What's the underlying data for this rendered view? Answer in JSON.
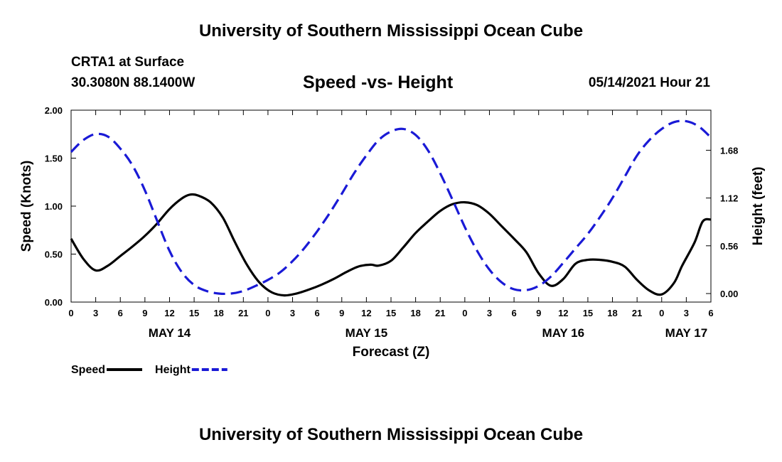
{
  "header": {
    "title": "University of Southern Mississippi Ocean Cube",
    "station": "CRTA1 at Surface",
    "coords": "30.3080N  88.1400W",
    "datetime": "05/14/2021 Hour 21"
  },
  "footer": {
    "title": "University of Southern Mississippi Ocean Cube"
  },
  "chart_data": {
    "type": "line",
    "title": "Speed -vs- Height",
    "xlabel": "Forecast (Z)",
    "ylabel_left": "Speed (Knots)",
    "ylabel_right": "Height (feet)",
    "xlim": [
      0,
      78
    ],
    "x_ticks": [
      0,
      3,
      6,
      9,
      12,
      15,
      18,
      21,
      24,
      27,
      30,
      33,
      36,
      39,
      42,
      45,
      48,
      51,
      54,
      57,
      60,
      63,
      66,
      69,
      72,
      75,
      78
    ],
    "x_tick_labels": [
      "0",
      "3",
      "6",
      "9",
      "12",
      "15",
      "18",
      "21",
      "0",
      "3",
      "6",
      "9",
      "12",
      "15",
      "18",
      "21",
      "0",
      "3",
      "6",
      "9",
      "12",
      "15",
      "18",
      "21",
      "0",
      "3",
      "6"
    ],
    "date_labels": [
      {
        "x": 12,
        "label": "MAY 14"
      },
      {
        "x": 36,
        "label": "MAY 15"
      },
      {
        "x": 60,
        "label": "MAY 16"
      },
      {
        "x": 75,
        "label": "MAY 17"
      }
    ],
    "left_axis": {
      "ylim": [
        0,
        2.0
      ],
      "ticks": [
        0,
        0.5,
        1.0,
        1.5,
        2.0
      ],
      "tick_labels": [
        "0.00",
        "0.50",
        "1.00",
        "1.50",
        "2.00"
      ]
    },
    "right_axis": {
      "ylim": [
        -0.1,
        2.15
      ],
      "ticks": [
        0.0,
        0.56,
        1.12,
        1.68
      ],
      "tick_labels": [
        "0.00",
        "0.56",
        "1.12",
        "1.68"
      ]
    },
    "series": [
      {
        "name": "Speed",
        "axis": "left",
        "color": "#000000",
        "style": "solid",
        "x": [
          0,
          1.5,
          3,
          4.5,
          6,
          7.5,
          9,
          10.5,
          12,
          13.5,
          14.5,
          15.5,
          17,
          18.5,
          20,
          21.5,
          23,
          24.5,
          26,
          27.5,
          29,
          30.5,
          32,
          33.5,
          35,
          36.5,
          37.5,
          39,
          40.5,
          42,
          43.5,
          45,
          46.5,
          48,
          49.5,
          51,
          52.5,
          54,
          55.5,
          57,
          58.5,
          60,
          61.5,
          63,
          64.5,
          66,
          67.5,
          69,
          70.5,
          72,
          73.5,
          74.5,
          76,
          77,
          78
        ],
        "values": [
          0.66,
          0.45,
          0.33,
          0.38,
          0.48,
          0.58,
          0.69,
          0.82,
          0.97,
          1.08,
          1.12,
          1.11,
          1.04,
          0.88,
          0.62,
          0.38,
          0.2,
          0.1,
          0.07,
          0.09,
          0.13,
          0.18,
          0.24,
          0.31,
          0.37,
          0.39,
          0.38,
          0.43,
          0.57,
          0.72,
          0.84,
          0.95,
          1.02,
          1.04,
          1.01,
          0.92,
          0.79,
          0.66,
          0.52,
          0.3,
          0.17,
          0.24,
          0.4,
          0.44,
          0.44,
          0.42,
          0.37,
          0.23,
          0.12,
          0.08,
          0.2,
          0.38,
          0.62,
          0.84,
          0.86
        ]
      },
      {
        "name": "Height",
        "axis": "right",
        "color": "#1a1ad6",
        "style": "dashed",
        "x": [
          0,
          1.5,
          3,
          4.5,
          6,
          7.5,
          9,
          10.5,
          12,
          13.5,
          15,
          16.5,
          18,
          19.5,
          21,
          22.5,
          24,
          25.5,
          27,
          28.5,
          30,
          31.5,
          33,
          34.5,
          36,
          37.5,
          39,
          40.5,
          42,
          43.5,
          45,
          46.5,
          48,
          49.5,
          51,
          52.5,
          54,
          55.5,
          57,
          58.5,
          60,
          61.5,
          63,
          64.5,
          66,
          67.5,
          69,
          70.5,
          72,
          73.5,
          75,
          76.5,
          78
        ],
        "values": [
          1.66,
          1.8,
          1.87,
          1.84,
          1.7,
          1.5,
          1.21,
          0.85,
          0.5,
          0.25,
          0.1,
          0.03,
          0.0,
          0.0,
          0.03,
          0.09,
          0.16,
          0.25,
          0.38,
          0.54,
          0.73,
          0.94,
          1.17,
          1.41,
          1.62,
          1.8,
          1.9,
          1.93,
          1.86,
          1.68,
          1.41,
          1.1,
          0.78,
          0.5,
          0.28,
          0.13,
          0.05,
          0.04,
          0.09,
          0.2,
          0.36,
          0.53,
          0.7,
          0.9,
          1.12,
          1.37,
          1.62,
          1.8,
          1.93,
          2.01,
          2.02,
          1.96,
          1.83
        ]
      }
    ],
    "legend": [
      {
        "label": "Speed",
        "color": "#000000",
        "style": "solid"
      },
      {
        "label": "Height",
        "color": "#1a1ad6",
        "style": "dashed"
      }
    ]
  }
}
